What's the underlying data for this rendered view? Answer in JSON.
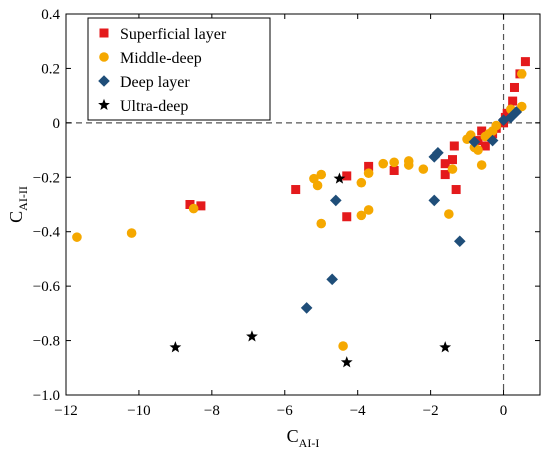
{
  "chart_data": {
    "type": "scatter",
    "xlabel": "C",
    "xlabel_sub": "AI-I",
    "ylabel": "C",
    "ylabel_sub": "AI-II",
    "xlim": [
      -12,
      1
    ],
    "ylim": [
      -1.0,
      0.4
    ],
    "xticks": [
      -12,
      -10,
      -8,
      -6,
      -4,
      -2,
      0
    ],
    "yticks": [
      -1.0,
      -0.8,
      -0.6,
      -0.4,
      -0.2,
      0,
      0.2,
      0.4
    ],
    "xtick_labels": [
      "−12",
      "−10",
      "−8",
      "−6",
      "−4",
      "−2",
      "0"
    ],
    "ytick_labels": [
      "−1.0",
      "−0.8",
      "−0.6",
      "−0.4",
      "−0.2",
      "0",
      "0.2",
      "0.4"
    ],
    "reference_lines": {
      "x": 0,
      "y": 0,
      "style": "dashed"
    },
    "legend_position": "top-left",
    "series": [
      {
        "name": "Superficial layer",
        "marker": "square",
        "color": "#e41a1c",
        "points": [
          [
            -8.6,
            -0.3
          ],
          [
            -8.3,
            -0.305
          ],
          [
            -5.7,
            -0.245
          ],
          [
            -4.3,
            -0.195
          ],
          [
            -4.3,
            -0.345
          ],
          [
            -3.7,
            -0.16
          ],
          [
            -3.0,
            -0.175
          ],
          [
            -1.6,
            -0.15
          ],
          [
            -1.6,
            -0.19
          ],
          [
            -1.4,
            -0.135
          ],
          [
            -1.35,
            -0.085
          ],
          [
            -1.3,
            -0.245
          ],
          [
            -0.7,
            -0.065
          ],
          [
            -0.6,
            -0.03
          ],
          [
            -0.5,
            -0.085
          ],
          [
            -0.4,
            -0.05
          ],
          [
            -0.3,
            -0.04
          ],
          [
            -0.2,
            -0.02
          ],
          [
            0.0,
            0.0
          ],
          [
            0.05,
            0.02
          ],
          [
            0.1,
            0.035
          ],
          [
            0.25,
            0.08
          ],
          [
            0.3,
            0.13
          ],
          [
            0.45,
            0.18
          ],
          [
            0.6,
            0.225
          ]
        ]
      },
      {
        "name": "Middle-deep",
        "marker": "circle",
        "color": "#f5a800",
        "points": [
          [
            -11.7,
            -0.42
          ],
          [
            -10.2,
            -0.405
          ],
          [
            -8.5,
            -0.315
          ],
          [
            -5.2,
            -0.205
          ],
          [
            -5.1,
            -0.23
          ],
          [
            -5.0,
            -0.37
          ],
          [
            -5.0,
            -0.19
          ],
          [
            -4.4,
            -0.82
          ],
          [
            -3.9,
            -0.22
          ],
          [
            -3.9,
            -0.34
          ],
          [
            -3.7,
            -0.32
          ],
          [
            -3.7,
            -0.185
          ],
          [
            -3.3,
            -0.15
          ],
          [
            -3.0,
            -0.145
          ],
          [
            -2.6,
            -0.14
          ],
          [
            -2.6,
            -0.155
          ],
          [
            -2.2,
            -0.17
          ],
          [
            -1.5,
            -0.335
          ],
          [
            -1.4,
            -0.17
          ],
          [
            -1.0,
            -0.06
          ],
          [
            -0.9,
            -0.045
          ],
          [
            -0.8,
            -0.09
          ],
          [
            -0.7,
            -0.1
          ],
          [
            -0.6,
            -0.155
          ],
          [
            -0.5,
            -0.05
          ],
          [
            -0.4,
            -0.04
          ],
          [
            -0.3,
            -0.03
          ],
          [
            -0.2,
            -0.01
          ],
          [
            0.2,
            0.05
          ],
          [
            0.5,
            0.06
          ],
          [
            0.5,
            0.18
          ]
        ]
      },
      {
        "name": "Deep layer",
        "marker": "diamond",
        "color": "#1f4e79",
        "points": [
          [
            -5.4,
            -0.68
          ],
          [
            -4.7,
            -0.575
          ],
          [
            -4.6,
            -0.285
          ],
          [
            -1.9,
            -0.125
          ],
          [
            -1.8,
            -0.11
          ],
          [
            -1.9,
            -0.285
          ],
          [
            -1.2,
            -0.435
          ],
          [
            -0.8,
            -0.07
          ],
          [
            -0.3,
            -0.065
          ],
          [
            0.0,
            0.01
          ],
          [
            0.2,
            0.02
          ],
          [
            0.35,
            0.04
          ]
        ]
      },
      {
        "name": "Ultra-deep",
        "marker": "star",
        "color": "#000000",
        "points": [
          [
            -9.0,
            -0.825
          ],
          [
            -6.9,
            -0.785
          ],
          [
            -4.5,
            -0.205
          ],
          [
            -4.3,
            -0.88
          ],
          [
            -1.6,
            -0.825
          ]
        ]
      }
    ]
  }
}
